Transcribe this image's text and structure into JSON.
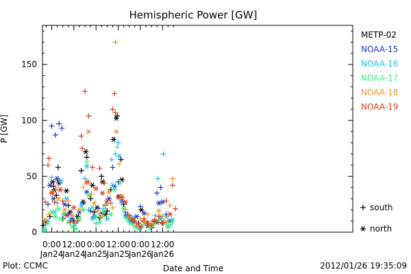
{
  "chart_data": {
    "type": "scatter",
    "title": "Hemispheric Power [GW]",
    "xlabel": "Date and Time",
    "ylabel": "P [GW]",
    "x_unit": "hours since 2012-01-24 00:00 UT",
    "xlim": [
      -5,
      163
    ],
    "ylim": [
      0,
      185
    ],
    "x_ticks": [
      {
        "x": 0,
        "top": "0:00",
        "bottom": "Jan24"
      },
      {
        "x": 12,
        "top": "12:00",
        "bottom": "Jan24"
      },
      {
        "x": 24,
        "top": "0:00",
        "bottom": "Jan25"
      },
      {
        "x": 36,
        "top": "12:00",
        "bottom": "Jan25"
      },
      {
        "x": 48,
        "top": "0:00",
        "bottom": "Jan26"
      },
      {
        "x": 60,
        "top": "12:00",
        "bottom": "Jan26"
      }
    ],
    "y_ticks": [
      0,
      50,
      100,
      150
    ],
    "marker_legend": [
      {
        "symbol": "+",
        "label": "south"
      },
      {
        "symbol": "*",
        "label": "north"
      }
    ],
    "series": [
      {
        "name": "METP-02",
        "color": "#000000",
        "points": [
          [
            -4.5,
            6,
            "s"
          ],
          [
            -3,
            9,
            "n"
          ],
          [
            -1,
            14,
            "s"
          ],
          [
            0.5,
            45,
            "n"
          ],
          [
            1,
            41,
            "s"
          ],
          [
            1.5,
            38,
            "n"
          ],
          [
            2.5,
            33,
            "s"
          ],
          [
            3.5,
            58,
            "s"
          ],
          [
            4,
            44,
            "n"
          ],
          [
            6,
            12,
            "s"
          ],
          [
            8,
            37,
            "n"
          ],
          [
            9,
            24,
            "s"
          ],
          [
            10,
            18,
            "n"
          ],
          [
            12,
            10,
            "s"
          ],
          [
            14,
            14,
            "n"
          ],
          [
            16,
            55,
            "s"
          ],
          [
            17,
            27,
            "n"
          ],
          [
            18.5,
            72,
            "n"
          ],
          [
            19,
            67,
            "s"
          ],
          [
            21,
            30,
            "s"
          ],
          [
            22,
            42,
            "n"
          ],
          [
            23,
            18,
            "s"
          ],
          [
            24.5,
            22,
            "n"
          ],
          [
            26,
            13,
            "s"
          ],
          [
            27,
            50,
            "s"
          ],
          [
            27.5,
            45,
            "n"
          ],
          [
            29,
            16,
            "n"
          ],
          [
            30,
            19,
            "s"
          ],
          [
            32,
            38,
            "s"
          ],
          [
            33.5,
            83,
            "n"
          ],
          [
            35,
            102,
            "n"
          ],
          [
            35.5,
            104,
            "s"
          ],
          [
            36.5,
            32,
            "n"
          ],
          [
            37.5,
            65,
            "s"
          ],
          [
            38,
            47,
            "n"
          ],
          [
            39,
            25,
            "s"
          ],
          [
            40.5,
            15,
            "n"
          ],
          [
            42,
            12,
            "s"
          ],
          [
            44,
            10,
            "n"
          ],
          [
            47,
            8,
            "s"
          ],
          [
            48.5,
            20,
            "n"
          ],
          [
            50,
            10,
            "s"
          ],
          [
            52,
            6,
            "n"
          ],
          [
            54,
            4,
            "s"
          ],
          [
            57,
            9,
            "n"
          ],
          [
            60,
            8,
            "s"
          ],
          [
            63,
            5,
            "n"
          ]
        ]
      },
      {
        "name": "NOAA-15",
        "color": "#1c34c8",
        "points": [
          [
            -2,
            25,
            "s"
          ],
          [
            -1,
            42,
            "n"
          ],
          [
            0,
            95,
            "s"
          ],
          [
            1,
            30,
            "n"
          ],
          [
            2,
            87,
            "s"
          ],
          [
            3,
            48,
            "n"
          ],
          [
            4,
            97,
            "s"
          ],
          [
            5.5,
            93,
            "s"
          ],
          [
            7,
            25,
            "n"
          ],
          [
            9,
            16,
            "s"
          ],
          [
            11,
            12,
            "n"
          ],
          [
            13,
            8,
            "s"
          ],
          [
            15,
            18,
            "n"
          ],
          [
            17,
            26,
            "s"
          ],
          [
            19,
            36,
            "n"
          ],
          [
            21,
            19,
            "s"
          ],
          [
            23,
            14,
            "n"
          ],
          [
            25,
            21,
            "s"
          ],
          [
            27,
            17,
            "n"
          ],
          [
            29,
            24,
            "s"
          ],
          [
            31,
            30,
            "n"
          ],
          [
            33,
            58,
            "s"
          ],
          [
            34,
            41,
            "n"
          ],
          [
            36,
            45,
            "s"
          ],
          [
            38,
            28,
            "n"
          ],
          [
            40,
            18,
            "s"
          ],
          [
            42,
            12,
            "n"
          ],
          [
            44,
            9,
            "s"
          ],
          [
            46,
            14,
            "n"
          ],
          [
            48,
            23,
            "s"
          ],
          [
            50,
            17,
            "n"
          ],
          [
            52,
            8,
            "s"
          ],
          [
            55,
            10,
            "n"
          ],
          [
            57,
            35,
            "s"
          ],
          [
            58,
            26,
            "n"
          ],
          [
            59,
            40,
            "s"
          ],
          [
            60,
            27,
            "n"
          ],
          [
            62,
            16,
            "s"
          ],
          [
            64,
            10,
            "n"
          ]
        ]
      },
      {
        "name": "NOAA-16",
        "color": "#20c0f0",
        "points": [
          [
            -4,
            3,
            "n"
          ],
          [
            -2,
            10,
            "s"
          ],
          [
            0,
            49,
            "s"
          ],
          [
            1.5,
            18,
            "n"
          ],
          [
            3,
            26,
            "s"
          ],
          [
            5,
            46,
            "n"
          ],
          [
            6.5,
            16,
            "s"
          ],
          [
            8,
            30,
            "n"
          ],
          [
            10,
            11,
            "s"
          ],
          [
            12,
            6,
            "n"
          ],
          [
            14,
            10,
            "s"
          ],
          [
            16,
            24,
            "n"
          ],
          [
            18,
            48,
            "s"
          ],
          [
            19,
            59,
            "n"
          ],
          [
            20,
            20,
            "s"
          ],
          [
            22,
            12,
            "n"
          ],
          [
            24,
            8,
            "s"
          ],
          [
            26,
            14,
            "n"
          ],
          [
            28,
            21,
            "s"
          ],
          [
            30,
            12,
            "n"
          ],
          [
            32.5,
            65,
            "s"
          ],
          [
            33,
            42,
            "n"
          ],
          [
            34.5,
            70,
            "s"
          ],
          [
            36,
            80,
            "s"
          ],
          [
            36.5,
            68,
            "n"
          ],
          [
            38,
            26,
            "s"
          ],
          [
            40,
            14,
            "n"
          ],
          [
            42,
            9,
            "s"
          ],
          [
            44,
            13,
            "n"
          ],
          [
            46,
            6,
            "s"
          ],
          [
            48,
            4,
            "n"
          ],
          [
            50,
            9,
            "s"
          ],
          [
            53,
            6,
            "n"
          ],
          [
            56,
            15,
            "s"
          ],
          [
            57.5,
            48,
            "s"
          ],
          [
            59,
            12,
            "n"
          ],
          [
            60.5,
            70,
            "s"
          ],
          [
            62,
            14,
            "n"
          ],
          [
            64.5,
            7,
            "s"
          ],
          [
            65.5,
            11,
            "n"
          ]
        ]
      },
      {
        "name": "NOAA-17",
        "color": "#3af07c",
        "points": [
          [
            -4,
            2,
            "n"
          ],
          [
            -2,
            8,
            "n"
          ],
          [
            0,
            18,
            "n"
          ],
          [
            2,
            14,
            "n"
          ],
          [
            3.5,
            21,
            "n"
          ],
          [
            5,
            12,
            "n"
          ],
          [
            7,
            17,
            "n"
          ],
          [
            9,
            9,
            "n"
          ],
          [
            11,
            5,
            "n"
          ],
          [
            13,
            3,
            "n"
          ],
          [
            15,
            12,
            "n"
          ],
          [
            17,
            20,
            "n"
          ],
          [
            19,
            63,
            "s"
          ],
          [
            20,
            33,
            "n"
          ],
          [
            22,
            22,
            "n"
          ],
          [
            24,
            14,
            "n"
          ],
          [
            26,
            9,
            "n"
          ],
          [
            28,
            18,
            "n"
          ],
          [
            30,
            26,
            "n"
          ],
          [
            32,
            16,
            "n"
          ],
          [
            34,
            38,
            "n"
          ],
          [
            35.5,
            76,
            "s"
          ],
          [
            37,
            44,
            "n"
          ],
          [
            39,
            21,
            "n"
          ],
          [
            41,
            12,
            "n"
          ],
          [
            43,
            8,
            "n"
          ],
          [
            45,
            5,
            "n"
          ],
          [
            47,
            3,
            "n"
          ],
          [
            49,
            6,
            "n"
          ],
          [
            51,
            9,
            "n"
          ],
          [
            53,
            4,
            "n"
          ],
          [
            55,
            7,
            "n"
          ],
          [
            57,
            10,
            "n"
          ],
          [
            59,
            14,
            "n"
          ],
          [
            61,
            8,
            "n"
          ],
          [
            63,
            5,
            "n"
          ],
          [
            65,
            9,
            "n"
          ]
        ]
      },
      {
        "name": "NOAA-18",
        "color": "#f0962a",
        "points": [
          [
            -3.5,
            11,
            "n"
          ],
          [
            -1.5,
            16,
            "s"
          ],
          [
            0.5,
            36,
            "n"
          ],
          [
            2,
            40,
            "s"
          ],
          [
            3.5,
            30,
            "n"
          ],
          [
            5,
            38,
            "s"
          ],
          [
            7,
            20,
            "n"
          ],
          [
            9,
            28,
            "s"
          ],
          [
            11,
            15,
            "n"
          ],
          [
            13,
            9,
            "s"
          ],
          [
            15,
            20,
            "n"
          ],
          [
            17,
            40,
            "s"
          ],
          [
            18.5,
            44,
            "n"
          ],
          [
            20,
            90,
            "n"
          ],
          [
            21.5,
            34,
            "s"
          ],
          [
            23,
            26,
            "n"
          ],
          [
            25,
            19,
            "s"
          ],
          [
            27,
            14,
            "n"
          ],
          [
            29,
            25,
            "s"
          ],
          [
            31,
            36,
            "n"
          ],
          [
            33,
            22,
            "s"
          ],
          [
            34.5,
            170,
            "s"
          ],
          [
            35,
            90,
            "n"
          ],
          [
            36.5,
            61,
            "s"
          ],
          [
            38,
            32,
            "n"
          ],
          [
            40,
            20,
            "s"
          ],
          [
            42,
            14,
            "n"
          ],
          [
            44,
            11,
            "s"
          ],
          [
            46,
            6,
            "n"
          ],
          [
            48,
            12,
            "s"
          ],
          [
            50,
            9,
            "n"
          ],
          [
            52,
            16,
            "s"
          ],
          [
            54,
            7,
            "n"
          ],
          [
            56,
            11,
            "s"
          ],
          [
            58,
            19,
            "n"
          ],
          [
            60,
            14,
            "s"
          ],
          [
            62,
            9,
            "n"
          ],
          [
            64,
            24,
            "s"
          ],
          [
            65.5,
            48,
            "s"
          ]
        ]
      },
      {
        "name": "NOAA-19",
        "color": "#e03a1c",
        "points": [
          [
            -3.5,
            27,
            "s"
          ],
          [
            -2,
            60,
            "s"
          ],
          [
            -1.5,
            66,
            "s"
          ],
          [
            0,
            35,
            "n"
          ],
          [
            1.5,
            27,
            "s"
          ],
          [
            3,
            47,
            "s"
          ],
          [
            4.5,
            38,
            "n"
          ],
          [
            6,
            28,
            "s"
          ],
          [
            8,
            15,
            "n"
          ],
          [
            10,
            9,
            "s"
          ],
          [
            12,
            22,
            "n"
          ],
          [
            14,
            10,
            "s"
          ],
          [
            16,
            86,
            "s"
          ],
          [
            16.5,
            75,
            "s"
          ],
          [
            18,
            126,
            "s"
          ],
          [
            19.5,
            45,
            "n"
          ],
          [
            20,
            104,
            "s"
          ],
          [
            22,
            58,
            "s"
          ],
          [
            24,
            39,
            "n"
          ],
          [
            26,
            57,
            "s"
          ],
          [
            27.5,
            35,
            "n"
          ],
          [
            28.5,
            44,
            "s"
          ],
          [
            30,
            28,
            "n"
          ],
          [
            32,
            26,
            "s"
          ],
          [
            33,
            110,
            "s"
          ],
          [
            34,
            124,
            "s"
          ],
          [
            34.5,
            107,
            "s"
          ],
          [
            36,
            31,
            "n"
          ],
          [
            38,
            31,
            "s"
          ],
          [
            40,
            27,
            "n"
          ],
          [
            42,
            15,
            "s"
          ],
          [
            44,
            11,
            "n"
          ],
          [
            46,
            8,
            "s"
          ],
          [
            48,
            5,
            "n"
          ],
          [
            50,
            12,
            "s"
          ],
          [
            52,
            8,
            "n"
          ],
          [
            54,
            6,
            "s"
          ],
          [
            56,
            10,
            "n"
          ],
          [
            58,
            14,
            "s"
          ],
          [
            60,
            9,
            "n"
          ],
          [
            62,
            28,
            "s"
          ],
          [
            64,
            16,
            "n"
          ],
          [
            65.5,
            42,
            "s"
          ],
          [
            67,
            21,
            "s"
          ]
        ]
      }
    ]
  },
  "footer": {
    "left": "Plot: CCMC",
    "right": "2012/01/26 19:35:09"
  }
}
